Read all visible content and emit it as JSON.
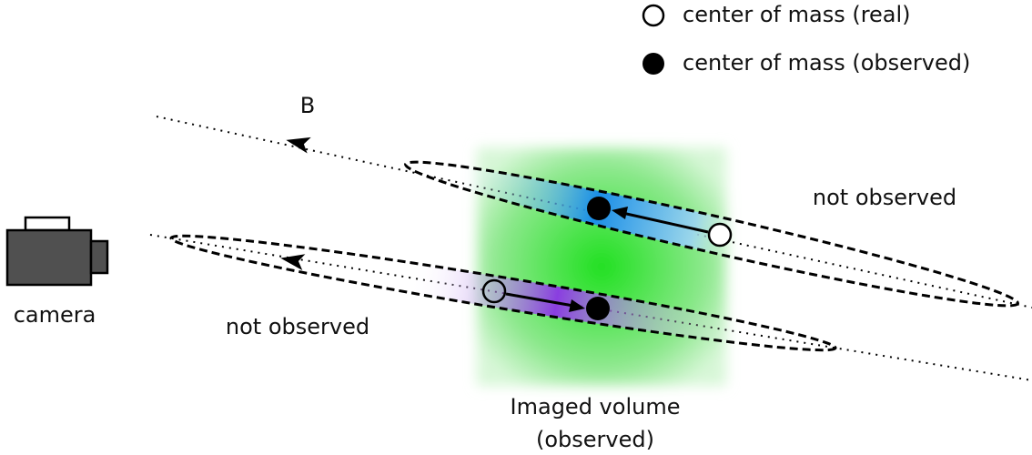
{
  "legend": {
    "real": "center of mass (real)",
    "observed": "center of mass (observed)"
  },
  "labels": {
    "field": "B",
    "camera": "camera",
    "not_observed_top": "not observed",
    "not_observed_bottom": "not observed",
    "volume": "Imaged volume",
    "volume_note": "(observed)"
  }
}
